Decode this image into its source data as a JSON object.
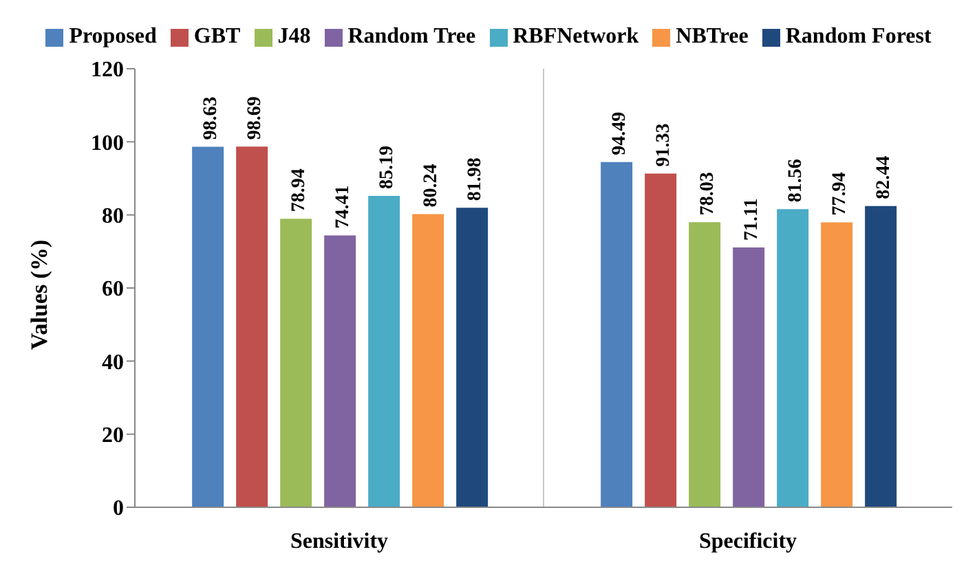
{
  "chart_data": {
    "type": "bar",
    "ylabel": "Values (%)",
    "categories": [
      "Sensitivity",
      "Specificity"
    ],
    "series": [
      {
        "name": "Proposed",
        "color": "#4f81bd",
        "values": [
          98.63,
          94.49
        ]
      },
      {
        "name": "GBT",
        "color": "#c0504d",
        "values": [
          98.69,
          91.33
        ]
      },
      {
        "name": "J48",
        "color": "#9bbb59",
        "values": [
          78.94,
          78.03
        ]
      },
      {
        "name": "Random Tree",
        "color": "#8064a2",
        "values": [
          74.41,
          71.11
        ]
      },
      {
        "name": "RBFNetwork",
        "color": "#4bacc6",
        "values": [
          85.19,
          81.56
        ]
      },
      {
        "name": "NBTree",
        "color": "#f79646",
        "values": [
          80.24,
          77.94
        ]
      },
      {
        "name": "Random Forest",
        "color": "#1f497d",
        "values": [
          81.98,
          82.44
        ]
      }
    ],
    "ylim": [
      0,
      120
    ],
    "yticks": [
      0,
      20,
      40,
      60,
      80,
      100,
      120
    ],
    "grid": "x",
    "legend": "top",
    "data_labels": true
  }
}
